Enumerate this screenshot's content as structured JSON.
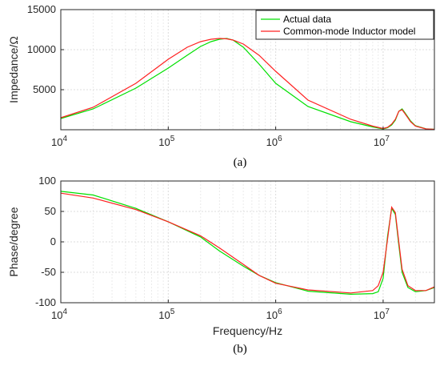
{
  "chart_data": [
    {
      "type": "line",
      "panel_label": "(a)",
      "xlabel": "",
      "ylabel": "Impedance/Ω",
      "xscale": "log",
      "xlim": [
        10000,
        30000000
      ],
      "ylim": [
        0,
        15000
      ],
      "x_ticks": [
        {
          "base": "10",
          "exp": "4",
          "value": 10000
        },
        {
          "base": "10",
          "exp": "5",
          "value": 100000
        },
        {
          "base": "10",
          "exp": "6",
          "value": 1000000
        },
        {
          "base": "10",
          "exp": "7",
          "value": 10000000
        }
      ],
      "y_ticks": [
        "5000",
        "10000",
        "15000"
      ],
      "grid": true,
      "legend_position": "top-right",
      "series": [
        {
          "name": "Actual data",
          "color": "#00e000",
          "x": [
            10000,
            20000,
            50000,
            100000,
            150000,
            200000,
            250000,
            300000,
            350000,
            400000,
            500000,
            700000,
            1000000,
            2000000,
            5000000,
            8000000,
            10000000,
            11000000,
            12000000,
            13000000,
            14000000,
            15000000,
            16000000,
            18000000,
            20000000,
            25000000,
            30000000
          ],
          "y": [
            1400,
            2600,
            5200,
            7700,
            9300,
            10400,
            11000,
            11300,
            11400,
            11200,
            10300,
            8200,
            5800,
            2900,
            1000,
            350,
            100,
            250,
            600,
            1200,
            2300,
            2600,
            2100,
            1100,
            500,
            120,
            50
          ]
        },
        {
          "name": "Common-mode Inductor model",
          "color": "#ff2020",
          "x": [
            10000,
            20000,
            50000,
            100000,
            150000,
            200000,
            250000,
            300000,
            350000,
            400000,
            500000,
            700000,
            1000000,
            2000000,
            5000000,
            8000000,
            10000000,
            11000000,
            12000000,
            13000000,
            14000000,
            15000000,
            16000000,
            18000000,
            20000000,
            25000000,
            30000000
          ],
          "y": [
            1500,
            2800,
            5800,
            8800,
            10300,
            11000,
            11300,
            11400,
            11350,
            11200,
            10700,
            9300,
            7300,
            3700,
            1300,
            450,
            150,
            300,
            700,
            1300,
            2300,
            2500,
            2000,
            1000,
            450,
            100,
            50
          ]
        }
      ]
    },
    {
      "type": "line",
      "panel_label": "(b)",
      "xlabel": "Frequency/Hz",
      "ylabel": "Phase/degree",
      "xscale": "log",
      "xlim": [
        10000,
        30000000
      ],
      "ylim": [
        -100,
        100
      ],
      "x_ticks": [
        {
          "base": "10",
          "exp": "4",
          "value": 10000
        },
        {
          "base": "10",
          "exp": "5",
          "value": 100000
        },
        {
          "base": "10",
          "exp": "6",
          "value": 1000000
        },
        {
          "base": "10",
          "exp": "7",
          "value": 10000000
        }
      ],
      "y_ticks": [
        "-100",
        "-50",
        "0",
        "50",
        "100"
      ],
      "grid": true,
      "series": [
        {
          "name": "Actual data",
          "color": "#00e000",
          "x": [
            10000,
            20000,
            50000,
            100000,
            200000,
            300000,
            500000,
            700000,
            1000000,
            2000000,
            5000000,
            8000000,
            9000000,
            10000000,
            11000000,
            12000000,
            13000000,
            14000000,
            15000000,
            17000000,
            20000000,
            25000000,
            30000000
          ],
          "y": [
            83,
            77,
            55,
            33,
            8,
            -15,
            -40,
            -55,
            -67,
            -81,
            -86,
            -85,
            -82,
            -60,
            10,
            55,
            45,
            -5,
            -50,
            -75,
            -82,
            -80,
            -75
          ]
        },
        {
          "name": "Common-mode Inductor model",
          "color": "#ff2020",
          "x": [
            10000,
            20000,
            50000,
            100000,
            200000,
            300000,
            500000,
            700000,
            1000000,
            2000000,
            5000000,
            8000000,
            9000000,
            10000000,
            11000000,
            12000000,
            13000000,
            14000000,
            15000000,
            17000000,
            20000000,
            25000000,
            30000000
          ],
          "y": [
            80,
            72,
            53,
            33,
            10,
            -10,
            -37,
            -55,
            -68,
            -79,
            -84,
            -80,
            -72,
            -50,
            5,
            57,
            48,
            0,
            -45,
            -72,
            -80,
            -80,
            -74
          ]
        }
      ]
    }
  ]
}
